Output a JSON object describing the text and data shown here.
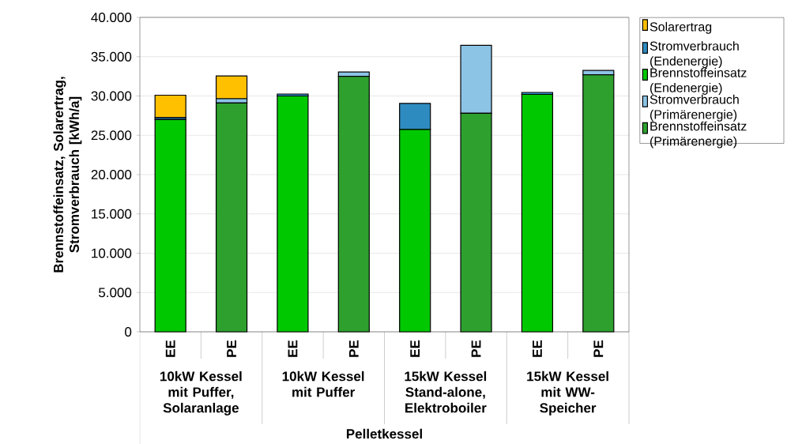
{
  "chart_data": {
    "type": "bar",
    "stacked": true,
    "ylabel": "Brennstoffeinsatz, Solarertrag, Stromverbrauch [kWh/a]",
    "categories": [
      "EE",
      "PE",
      "EE",
      "PE",
      "EE",
      "PE",
      "EE",
      "PE"
    ],
    "series": [
      {
        "name": "Brennstoffeinsatz (Primärenergie)",
        "color": "#2ea02e",
        "values": [
          null,
          29100,
          null,
          32500,
          null,
          27800,
          null,
          32700
        ]
      },
      {
        "name": "Stromverbrauch (Primärenergie)",
        "color": "#8cc4e6",
        "values": [
          null,
          550,
          null,
          550,
          null,
          8650,
          null,
          550
        ]
      },
      {
        "name": "Brennstoffeinsatz (Endenergie)",
        "color": "#00c800",
        "values": [
          27000,
          null,
          30000,
          null,
          25750,
          null,
          30200,
          null
        ]
      },
      {
        "name": "Stromverbrauch (Endenergie)",
        "color": "#2e8bc0",
        "values": [
          250,
          null,
          250,
          null,
          3300,
          null,
          250,
          null
        ]
      },
      {
        "name": "Solarertrag",
        "color": "#ffc000",
        "values": [
          2850,
          2900,
          null,
          null,
          null,
          null,
          null,
          null
        ]
      }
    ],
    "ylim": [
      0,
      40000
    ],
    "yticks": [
      0,
      {
        "value": 5000,
        "label": "5.000"
      },
      {
        "value": 10000,
        "label": "10.000"
      },
      {
        "value": 15000,
        "label": "15.000"
      },
      {
        "value": 20000,
        "label": "20.000"
      },
      {
        "value": 25000,
        "label": "25.000"
      },
      {
        "value": 30000,
        "label": "30.000"
      },
      {
        "value": 35000,
        "label": "35.000"
      },
      {
        "value": 40000,
        "label": "40.000"
      }
    ],
    "grid": "y",
    "legend": "right",
    "annotations": [
      "10kW Kessel mit Puffer, Solaranlage",
      "10kW Kessel mit Puffer",
      "15kW Kessel Stand-alone, Elektroboiler",
      "15kW Kessel mit WW-Speicher",
      "Pelletkessel"
    ]
  }
}
